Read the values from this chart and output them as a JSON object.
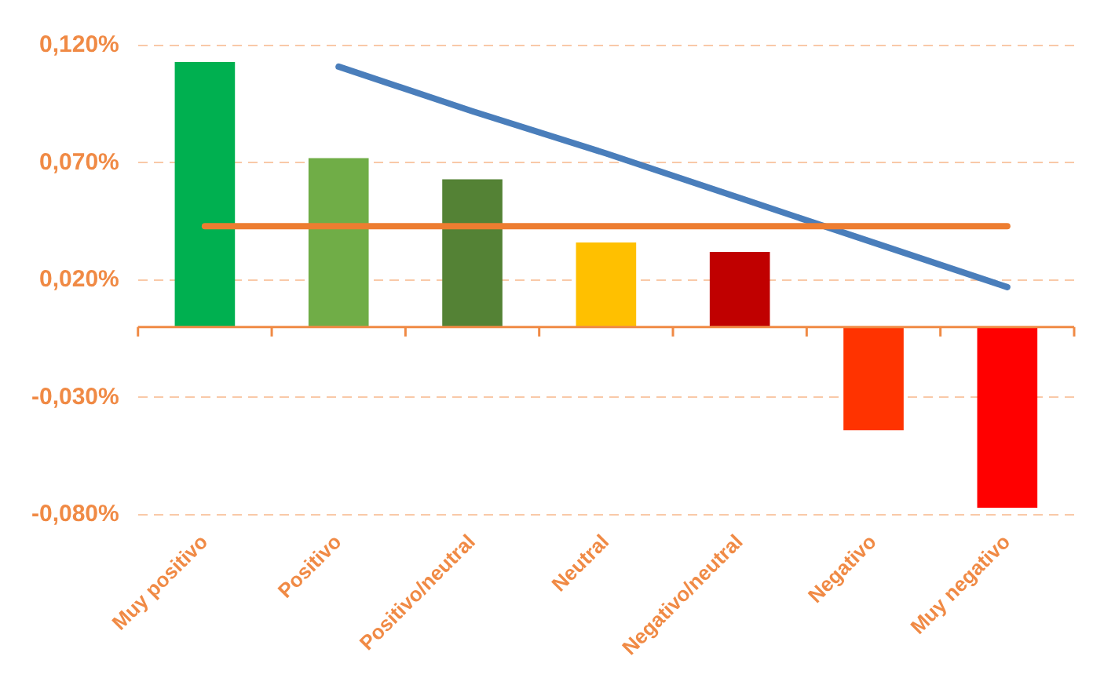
{
  "chart_data": {
    "type": "bar",
    "categories": [
      "Muy positivo",
      "Positivo",
      "Positivo/neutral",
      "Neutral",
      "Negativo/neutral",
      "Negativo",
      "Muy negativo"
    ],
    "series": [
      {
        "colors": [
          "#00b050",
          "#70ad47",
          "#548235",
          "#ffc000",
          "#c00000",
          "#ff3300",
          "#ff0000"
        ],
        "values": [
          0.113,
          0.072,
          0.063,
          0.036,
          0.032,
          -0.044,
          -0.077
        ]
      },
      {
        "type": "line",
        "color": "#ed7d31",
        "values": [
          0.043,
          0.043,
          0.043,
          0.043,
          0.043,
          0.043,
          0.043
        ]
      },
      {
        "type": "line",
        "color": "#4a7ebb",
        "values": [
          null,
          0.111,
          0.092,
          0.074,
          0.055,
          0.036,
          0.017
        ]
      }
    ],
    "ylim": [
      -0.08,
      0.12
    ],
    "yticks": [
      {
        "value": 0.12,
        "label": "0,120%"
      },
      {
        "value": 0.07,
        "label": "0,070%"
      },
      {
        "value": 0.02,
        "label": "0,020%"
      },
      {
        "value": -0.03,
        "label": "-0,030%"
      },
      {
        "value": -0.08,
        "label": "-0,080%"
      }
    ],
    "ref_lines": [
      {
        "axis": "y",
        "value": 0,
        "color": "#f08a45"
      }
    ],
    "grid": "y",
    "legend": false,
    "marker": "none",
    "line_style": "solid"
  }
}
